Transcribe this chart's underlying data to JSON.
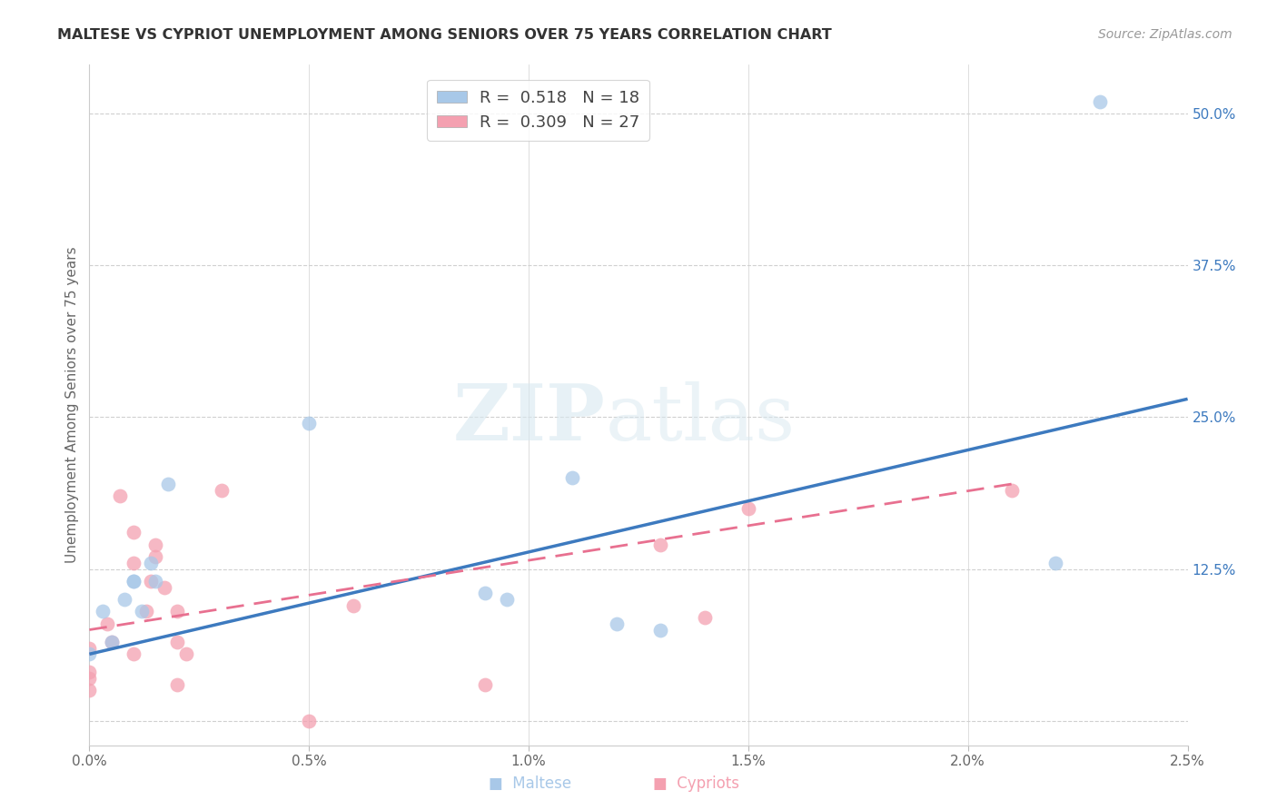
{
  "title": "MALTESE VS CYPRIOT UNEMPLOYMENT AMONG SENIORS OVER 75 YEARS CORRELATION CHART",
  "source": "Source: ZipAtlas.com",
  "ylabel": "Unemployment Among Seniors over 75 years",
  "xlim": [
    0.0,
    0.025
  ],
  "ylim": [
    -0.02,
    0.54
  ],
  "xticks": [
    0.0,
    0.005,
    0.01,
    0.015,
    0.02,
    0.025
  ],
  "xtick_labels": [
    "0.0%",
    "0.5%",
    "1.0%",
    "1.5%",
    "2.0%",
    "2.5%"
  ],
  "yticks_right": [
    0.0,
    0.125,
    0.25,
    0.375,
    0.5
  ],
  "ytick_labels_right": [
    "",
    "12.5%",
    "25.0%",
    "37.5%",
    "50.0%"
  ],
  "legend_r_blue": "R =  0.518",
  "legend_n_blue": "N = 18",
  "legend_r_pink": "R =  0.309",
  "legend_n_pink": "N = 27",
  "maltese_x": [
    0.0,
    0.0003,
    0.0005,
    0.0008,
    0.001,
    0.001,
    0.0012,
    0.0014,
    0.0015,
    0.0018,
    0.005,
    0.009,
    0.0095,
    0.011,
    0.012,
    0.013,
    0.022,
    0.023
  ],
  "maltese_y": [
    0.055,
    0.09,
    0.065,
    0.1,
    0.115,
    0.115,
    0.09,
    0.13,
    0.115,
    0.195,
    0.245,
    0.105,
    0.1,
    0.2,
    0.08,
    0.075,
    0.13,
    0.51
  ],
  "cypriot_x": [
    0.0,
    0.0,
    0.0,
    0.0,
    0.0004,
    0.0005,
    0.0007,
    0.001,
    0.001,
    0.001,
    0.0013,
    0.0014,
    0.0015,
    0.0015,
    0.0017,
    0.002,
    0.002,
    0.002,
    0.0022,
    0.003,
    0.005,
    0.006,
    0.009,
    0.013,
    0.014,
    0.015,
    0.021
  ],
  "cypriot_y": [
    0.06,
    0.04,
    0.035,
    0.025,
    0.08,
    0.065,
    0.185,
    0.155,
    0.13,
    0.055,
    0.09,
    0.115,
    0.135,
    0.145,
    0.11,
    0.09,
    0.065,
    0.03,
    0.055,
    0.19,
    0.0,
    0.095,
    0.03,
    0.145,
    0.085,
    0.175,
    0.19
  ],
  "blue_line_x0": 0.0,
  "blue_line_y0": 0.055,
  "blue_line_x1": 0.025,
  "blue_line_y1": 0.265,
  "pink_line_x0": 0.0,
  "pink_line_y0": 0.075,
  "pink_line_x1": 0.021,
  "pink_line_y1": 0.195,
  "blue_scatter_color": "#a8c8e8",
  "blue_line_color": "#3d7abf",
  "pink_scatter_color": "#f4a0b0",
  "pink_line_color": "#e87090",
  "watermark_zip": "ZIP",
  "watermark_atlas": "atlas",
  "marker_size": 130,
  "background_color": "#ffffff",
  "grid_color": "#d0d0d0",
  "spine_color": "#cccccc"
}
